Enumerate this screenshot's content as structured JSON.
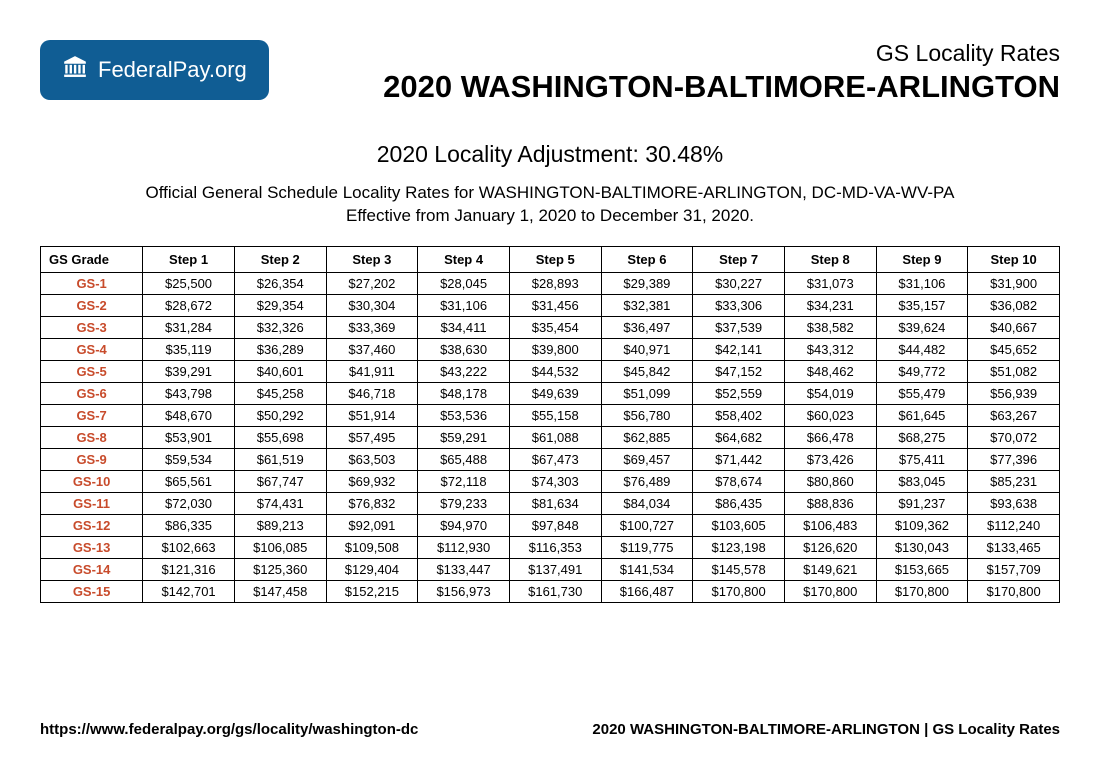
{
  "logo": {
    "prefix": "Federal",
    "suffix": "Pay.org"
  },
  "header": {
    "subtitle": "GS Locality Rates",
    "title": "2020 WASHINGTON-BALTIMORE-ARLINGTON"
  },
  "adjustment_line": "2020 Locality Adjustment: 30.48%",
  "description_line1": "Official General Schedule Locality Rates for WASHINGTON-BALTIMORE-ARLINGTON, DC-MD-VA-WV-PA",
  "description_line2": "Effective from January 1, 2020 to December 31, 2020.",
  "table": {
    "columns": [
      "GS Grade",
      "Step 1",
      "Step 2",
      "Step 3",
      "Step 4",
      "Step 5",
      "Step 6",
      "Step 7",
      "Step 8",
      "Step 9",
      "Step 10"
    ],
    "rows": [
      [
        "GS-1",
        "$25,500",
        "$26,354",
        "$27,202",
        "$28,045",
        "$28,893",
        "$29,389",
        "$30,227",
        "$31,073",
        "$31,106",
        "$31,900"
      ],
      [
        "GS-2",
        "$28,672",
        "$29,354",
        "$30,304",
        "$31,106",
        "$31,456",
        "$32,381",
        "$33,306",
        "$34,231",
        "$35,157",
        "$36,082"
      ],
      [
        "GS-3",
        "$31,284",
        "$32,326",
        "$33,369",
        "$34,411",
        "$35,454",
        "$36,497",
        "$37,539",
        "$38,582",
        "$39,624",
        "$40,667"
      ],
      [
        "GS-4",
        "$35,119",
        "$36,289",
        "$37,460",
        "$38,630",
        "$39,800",
        "$40,971",
        "$42,141",
        "$43,312",
        "$44,482",
        "$45,652"
      ],
      [
        "GS-5",
        "$39,291",
        "$40,601",
        "$41,911",
        "$43,222",
        "$44,532",
        "$45,842",
        "$47,152",
        "$48,462",
        "$49,772",
        "$51,082"
      ],
      [
        "GS-6",
        "$43,798",
        "$45,258",
        "$46,718",
        "$48,178",
        "$49,639",
        "$51,099",
        "$52,559",
        "$54,019",
        "$55,479",
        "$56,939"
      ],
      [
        "GS-7",
        "$48,670",
        "$50,292",
        "$51,914",
        "$53,536",
        "$55,158",
        "$56,780",
        "$58,402",
        "$60,023",
        "$61,645",
        "$63,267"
      ],
      [
        "GS-8",
        "$53,901",
        "$55,698",
        "$57,495",
        "$59,291",
        "$61,088",
        "$62,885",
        "$64,682",
        "$66,478",
        "$68,275",
        "$70,072"
      ],
      [
        "GS-9",
        "$59,534",
        "$61,519",
        "$63,503",
        "$65,488",
        "$67,473",
        "$69,457",
        "$71,442",
        "$73,426",
        "$75,411",
        "$77,396"
      ],
      [
        "GS-10",
        "$65,561",
        "$67,747",
        "$69,932",
        "$72,118",
        "$74,303",
        "$76,489",
        "$78,674",
        "$80,860",
        "$83,045",
        "$85,231"
      ],
      [
        "GS-11",
        "$72,030",
        "$74,431",
        "$76,832",
        "$79,233",
        "$81,634",
        "$84,034",
        "$86,435",
        "$88,836",
        "$91,237",
        "$93,638"
      ],
      [
        "GS-12",
        "$86,335",
        "$89,213",
        "$92,091",
        "$94,970",
        "$97,848",
        "$100,727",
        "$103,605",
        "$106,483",
        "$109,362",
        "$112,240"
      ],
      [
        "GS-13",
        "$102,663",
        "$106,085",
        "$109,508",
        "$112,930",
        "$116,353",
        "$119,775",
        "$123,198",
        "$126,620",
        "$130,043",
        "$133,465"
      ],
      [
        "GS-14",
        "$121,316",
        "$125,360",
        "$129,404",
        "$133,447",
        "$137,491",
        "$141,534",
        "$145,578",
        "$149,621",
        "$153,665",
        "$157,709"
      ],
      [
        "GS-15",
        "$142,701",
        "$147,458",
        "$152,215",
        "$156,973",
        "$161,730",
        "$166,487",
        "$170,800",
        "$170,800",
        "$170,800",
        "$170,800"
      ]
    ]
  },
  "footer": {
    "left": "https://www.federalpay.org/gs/locality/washington-dc",
    "right": "2020 WASHINGTON-BALTIMORE-ARLINGTON | GS Locality Rates"
  },
  "colors": {
    "badge_bg": "#105d94",
    "badge_fg": "#ffffff",
    "grade_color": "#c84b2b",
    "border": "#000000",
    "text": "#000000",
    "background": "#ffffff"
  }
}
